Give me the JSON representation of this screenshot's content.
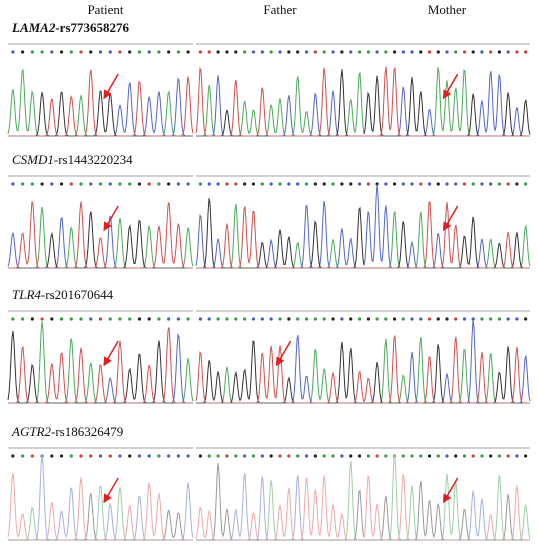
{
  "columns": [
    "Patient",
    "Father",
    "Mother"
  ],
  "rows": [
    {
      "gene": "LAMA2-",
      "snp": "rs773658276"
    },
    {
      "gene": "CSMD1-",
      "snp": "rs1443220234"
    },
    {
      "gene": "TLR4-",
      "snp": "rs201670644"
    },
    {
      "gene": "AGTR2-",
      "snp": "rs186326479"
    }
  ]
}
